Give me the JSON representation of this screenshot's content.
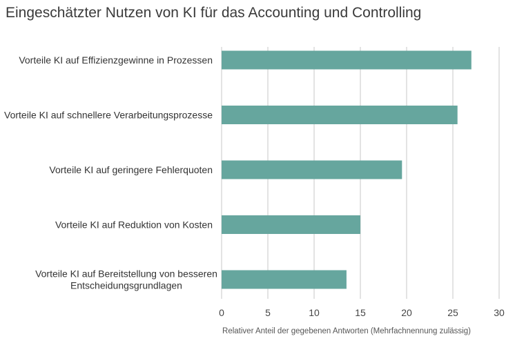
{
  "title": "Eingeschätzter Nutzen von KI für das Accounting und Controlling",
  "chart_data": {
    "type": "bar",
    "orientation": "horizontal",
    "title": "Eingeschätzter Nutzen von KI für das Accounting und Controlling",
    "categories": [
      "Vorteile KI auf Effizienzgewinne in Prozessen",
      "Vorteile KI auf schnellere Verarbeitungsprozesse",
      "Vorteile KI auf geringere Fehlerquoten",
      "Vorteile KI auf Reduktion von Kosten",
      "Vorteile KI auf Bereitstellung von besseren Entscheidungsgrundlagen"
    ],
    "category_lines": [
      [
        "Vorteile KI auf Effizienzgewinne in Prozessen"
      ],
      [
        "Vorteile KI auf schnellere Verarbeitungsprozesse"
      ],
      [
        "Vorteile KI auf geringere Fehlerquoten"
      ],
      [
        "Vorteile KI auf Reduktion von Kosten"
      ],
      [
        "Vorteile KI auf Bereitstellung von besseren",
        "Entscheidungsgrundlagen"
      ]
    ],
    "values": [
      27,
      25.5,
      19.5,
      15,
      13.5
    ],
    "xlabel": "Relativer Anteil der gegebenen Antworten (Mehrfachnennung zulässig)",
    "xlim": [
      0,
      30
    ],
    "xticks": [
      0,
      5,
      10,
      15,
      20,
      25,
      30
    ],
    "grid": true,
    "bar_color": "#66a69e",
    "grid_color": "#d0d0d0"
  }
}
